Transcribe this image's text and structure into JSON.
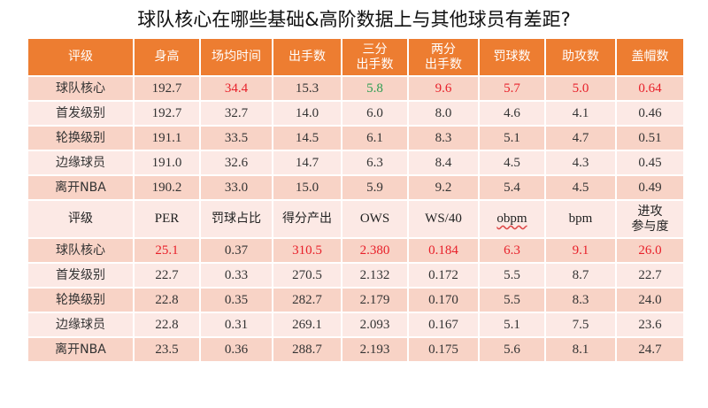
{
  "title": "球队核心在哪些基础&高阶数据上与其他球员有差距?",
  "colors": {
    "header": "#ED7D31",
    "row_dark": "#F8D3C6",
    "row_light": "#FCE9E5",
    "highlight_red": "#E8202A",
    "highlight_green": "#2E9E52"
  },
  "table1": {
    "headers": [
      "评级",
      "身高",
      "场均时间",
      "出手数",
      "三分\n出手数",
      "两分\n出手数",
      "罚球数",
      "助攻数",
      "盖帽数"
    ],
    "rows": [
      {
        "cells": [
          "球队核心",
          "192.7",
          "34.4",
          "15.3",
          "5.8",
          "9.6",
          "5.7",
          "5.0",
          "0.64"
        ],
        "red": [
          2,
          5,
          6,
          7,
          8
        ],
        "green": [
          4
        ]
      },
      {
        "cells": [
          "首发级别",
          "192.7",
          "32.7",
          "14.0",
          "6.0",
          "8.0",
          "4.6",
          "4.1",
          "0.46"
        ]
      },
      {
        "cells": [
          "轮换级别",
          "191.1",
          "33.5",
          "14.5",
          "6.1",
          "8.3",
          "5.1",
          "4.7",
          "0.51"
        ]
      },
      {
        "cells": [
          "边缘球员",
          "191.0",
          "32.6",
          "14.7",
          "6.3",
          "8.4",
          "4.5",
          "4.3",
          "0.45"
        ]
      },
      {
        "cells": [
          "离开NBA",
          "190.2",
          "33.0",
          "15.0",
          "5.9",
          "9.2",
          "5.4",
          "4.5",
          "0.49"
        ]
      }
    ]
  },
  "table2": {
    "headers": [
      "评级",
      "PER",
      "罚球占比",
      "得分产出",
      "OWS",
      "WS/40",
      "obpm",
      "bpm",
      "进攻\n参与度"
    ],
    "rows": [
      {
        "cells": [
          "球队核心",
          "25.1",
          "0.37",
          "310.5",
          "2.380",
          "0.184",
          "6.3",
          "9.1",
          "26.0"
        ],
        "red": [
          1,
          3,
          4,
          5,
          6,
          7,
          8
        ]
      },
      {
        "cells": [
          "首发级别",
          "22.7",
          "0.33",
          "270.5",
          "2.132",
          "0.172",
          "5.5",
          "8.7",
          "22.7"
        ]
      },
      {
        "cells": [
          "轮换级别",
          "22.8",
          "0.35",
          "282.7",
          "2.179",
          "0.170",
          "5.5",
          "8.3",
          "24.0"
        ]
      },
      {
        "cells": [
          "边缘球员",
          "22.8",
          "0.31",
          "269.1",
          "2.093",
          "0.167",
          "5.1",
          "7.5",
          "23.6"
        ]
      },
      {
        "cells": [
          "离开NBA",
          "23.5",
          "0.36",
          "288.7",
          "2.193",
          "0.175",
          "5.6",
          "8.1",
          "24.7"
        ]
      }
    ]
  }
}
